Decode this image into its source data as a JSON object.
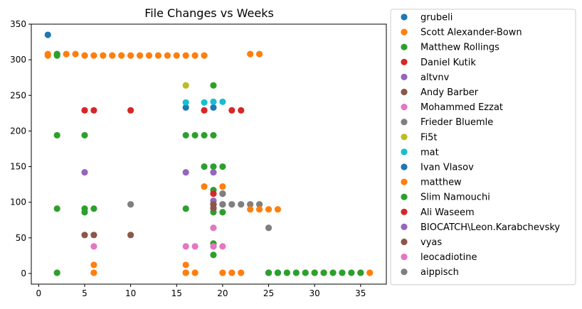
{
  "chart_data": {
    "type": "scatter",
    "title": "File Changes vs Weeks",
    "xlabel": "",
    "ylabel": "",
    "xlim": [
      -0.8,
      37.8
    ],
    "ylim": [
      -15,
      350
    ],
    "xticks": [
      0,
      5,
      10,
      15,
      20,
      25,
      30,
      35
    ],
    "yticks": [
      0,
      50,
      100,
      150,
      200,
      250,
      300,
      350
    ],
    "grid": false,
    "legend_placement": "outside-right",
    "series": [
      {
        "name": "grubeli",
        "color": "#1f77b4",
        "points": [
          [
            1,
            335
          ],
          [
            16,
            233
          ],
          [
            19,
            233
          ]
        ]
      },
      {
        "name": "Scott Alexander-Bown",
        "color": "#ff7f0e",
        "points": [
          [
            1,
            308
          ],
          [
            1,
            306
          ],
          [
            2,
            308
          ],
          [
            3,
            308
          ],
          [
            4,
            308
          ],
          [
            5,
            306
          ],
          [
            6,
            306
          ],
          [
            7,
            306
          ],
          [
            8,
            306
          ],
          [
            9,
            306
          ],
          [
            10,
            306
          ],
          [
            11,
            306
          ],
          [
            12,
            306
          ],
          [
            13,
            306
          ],
          [
            14,
            306
          ],
          [
            15,
            306
          ],
          [
            16,
            306
          ],
          [
            17,
            306
          ],
          [
            18,
            306
          ],
          [
            23,
            308
          ],
          [
            24,
            308
          ]
        ]
      },
      {
        "name": "Matthew Rollings",
        "color": "#2ca02c",
        "points": [
          [
            2,
            308
          ],
          [
            2,
            306
          ],
          [
            2,
            194
          ],
          [
            5,
            194
          ],
          [
            16,
            194
          ],
          [
            17,
            194
          ],
          [
            18,
            194
          ],
          [
            19,
            194
          ],
          [
            19,
            264
          ],
          [
            18,
            150
          ],
          [
            19,
            150
          ],
          [
            20,
            150
          ],
          [
            2,
            91
          ],
          [
            5,
            91
          ],
          [
            5,
            86
          ],
          [
            6,
            91
          ],
          [
            16,
            91
          ],
          [
            19,
            91
          ],
          [
            19,
            86
          ],
          [
            20,
            86
          ],
          [
            19,
            117
          ],
          [
            19,
            42
          ],
          [
            19,
            26
          ],
          [
            2,
            1
          ],
          [
            16,
            1
          ]
        ]
      },
      {
        "name": "Daniel Kutik",
        "color": "#d62728",
        "points": [
          [
            5,
            229
          ],
          [
            6,
            229
          ],
          [
            10,
            229
          ],
          [
            18,
            229
          ],
          [
            21,
            229
          ],
          [
            22,
            229
          ]
        ]
      },
      {
        "name": "altvnv",
        "color": "#9467bd",
        "points": [
          [
            5,
            142
          ],
          [
            16,
            142
          ],
          [
            19,
            142
          ]
        ]
      },
      {
        "name": "Andy Barber",
        "color": "#8c564b",
        "points": [
          [
            5,
            54
          ],
          [
            6,
            54
          ],
          [
            10,
            54
          ],
          [
            19,
            97
          ],
          [
            19,
            92
          ]
        ]
      },
      {
        "name": "Mohammed Ezzat",
        "color": "#e377c2",
        "points": [
          [
            6,
            38
          ],
          [
            16,
            38
          ],
          [
            17,
            38
          ],
          [
            19,
            38
          ],
          [
            20,
            38
          ],
          [
            19,
            64
          ]
        ]
      },
      {
        "name": "Frieder Bluemle",
        "color": "#7f7f7f",
        "points": [
          [
            10,
            97
          ],
          [
            20,
            97
          ],
          [
            20,
            112
          ],
          [
            21,
            97
          ],
          [
            22,
            97
          ],
          [
            23,
            97
          ],
          [
            24,
            97
          ],
          [
            25,
            64
          ]
        ]
      },
      {
        "name": "Fi5t",
        "color": "#bcbd22",
        "points": [
          [
            16,
            264
          ]
        ]
      },
      {
        "name": "mat",
        "color": "#17becf",
        "points": [
          [
            16,
            240
          ],
          [
            18,
            240
          ],
          [
            19,
            241
          ],
          [
            20,
            241
          ]
        ]
      },
      {
        "name": "Ivan Vlasov",
        "color": "#1f77b4",
        "points": [
          [
            25,
            1
          ],
          [
            26,
            1
          ]
        ]
      },
      {
        "name": "matthew",
        "color": "#ff7f0e",
        "points": [
          [
            6,
            12
          ],
          [
            6,
            1
          ],
          [
            16,
            12
          ],
          [
            16,
            1
          ],
          [
            17,
            1
          ],
          [
            18,
            122
          ],
          [
            20,
            122
          ],
          [
            20,
            1
          ],
          [
            21,
            1
          ],
          [
            22,
            1
          ],
          [
            23,
            90
          ],
          [
            24,
            90
          ],
          [
            25,
            90
          ],
          [
            26,
            90
          ],
          [
            30,
            1
          ],
          [
            31,
            1
          ],
          [
            35,
            1
          ],
          [
            36,
            1
          ]
        ]
      },
      {
        "name": "Slim Namouchi",
        "color": "#2ca02c",
        "points": [
          [
            25,
            1
          ],
          [
            26,
            1
          ],
          [
            27,
            1
          ],
          [
            28,
            1
          ],
          [
            29,
            1
          ],
          [
            30,
            1
          ],
          [
            31,
            1
          ],
          [
            32,
            1
          ],
          [
            33,
            1
          ],
          [
            34,
            1
          ],
          [
            35,
            1
          ]
        ]
      },
      {
        "name": "Ali Waseem",
        "color": "#d62728",
        "points": [
          [
            19,
            112
          ]
        ]
      },
      {
        "name": "BIOCATCH\\Leon.Karabchevsky",
        "color": "#9467bd",
        "points": [
          [
            19,
            102
          ]
        ]
      },
      {
        "name": "vyas",
        "color": "#8c564b",
        "points": [
          [
            19,
            97
          ]
        ]
      },
      {
        "name": "leocadiotine",
        "color": "#e377c2",
        "points": [
          [
            19,
            38
          ]
        ]
      },
      {
        "name": "aippisch",
        "color": "#7f7f7f",
        "points": [
          [
            20,
            97
          ],
          [
            20,
            112
          ]
        ]
      }
    ]
  }
}
